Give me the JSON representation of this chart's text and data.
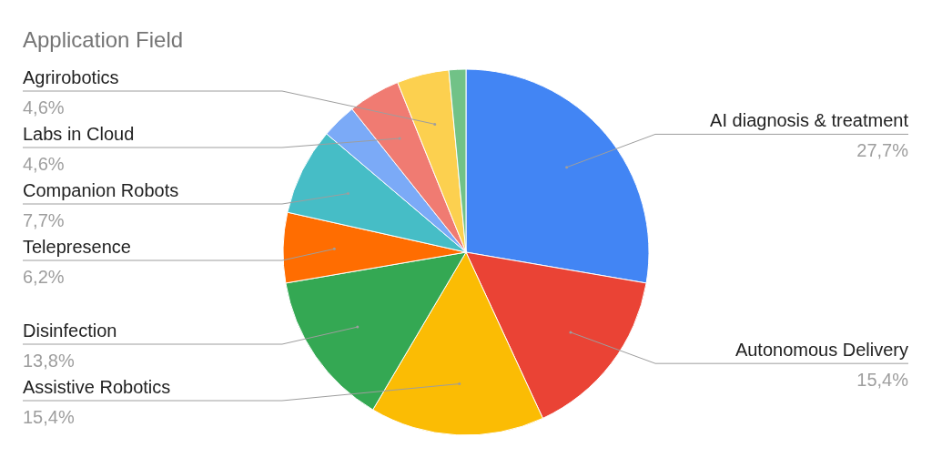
{
  "chart_data": {
    "type": "pie",
    "title": "Application Field",
    "categories": [
      "AI diagnosis & treatment",
      "Autonomous Delivery",
      "Assistive Robotics",
      "Disinfection",
      "Telepresence",
      "Companion Robots",
      null,
      "Labs in Cloud",
      "Agrirobotics",
      null
    ],
    "values": [
      27.7,
      15.4,
      15.4,
      13.8,
      6.2,
      7.7,
      3.1,
      4.6,
      4.6,
      1.5
    ],
    "colors": [
      "#4285f4",
      "#ea4335",
      "#fbbc04",
      "#34a853",
      "#ff6d01",
      "#46bdc6",
      "#7baaf7",
      "#f07b72",
      "#fcd04f",
      "#71c287"
    ],
    "value_labels": [
      "27,7%",
      "15,4%",
      "15,4%",
      "13,8%",
      "6,2%",
      "7,7%",
      null,
      "4,6%",
      "4,6%",
      null
    ]
  }
}
